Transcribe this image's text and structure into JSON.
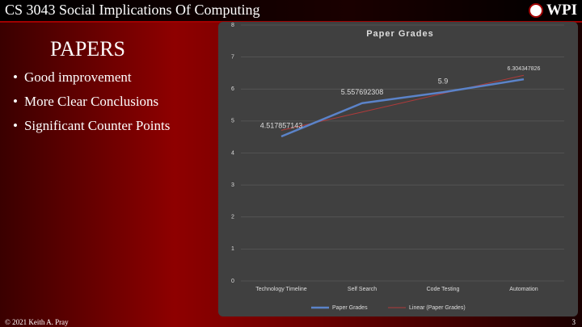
{
  "header": {
    "title": "CS 3043 Social Implications Of Computing",
    "logo": "WPI"
  },
  "slide": {
    "heading": "PAPERS",
    "bullets": [
      "Good improvement",
      "More Clear Conclusions",
      "Significant Counter Points"
    ]
  },
  "footer": {
    "copyright": "© 2021 Keith A. Pray",
    "page": "3"
  },
  "chart_data": {
    "type": "line",
    "title": "Paper Grades",
    "categories": [
      "Technology Timeline",
      "Self Search",
      "Code Testing",
      "Automation"
    ],
    "series": [
      {
        "name": "Paper Grades",
        "color": "#5b83c9",
        "values": [
          4.517857143,
          5.557692308,
          5.9,
          6.304347826
        ],
        "data_labels": true
      },
      {
        "name": "Linear (Paper Grades)",
        "color": "#b03a3a",
        "values": [
          4.71,
          5.28,
          5.86,
          6.43
        ],
        "data_labels": false
      }
    ],
    "ylim": [
      0,
      8
    ],
    "yticks": [
      0,
      1,
      2,
      3,
      4,
      5,
      6,
      7,
      8
    ],
    "grid": true,
    "legend": "bottom"
  }
}
